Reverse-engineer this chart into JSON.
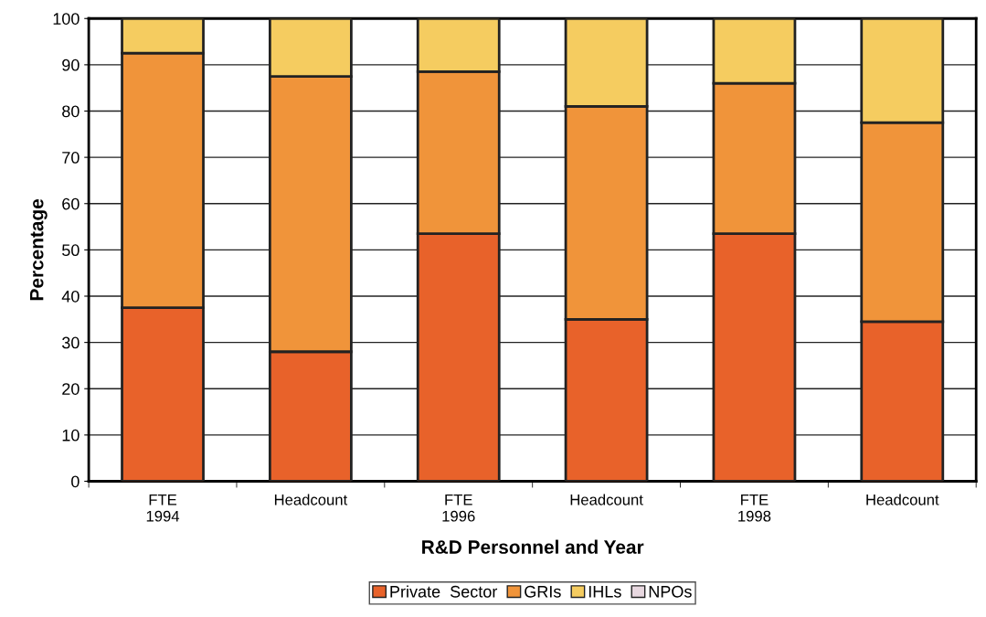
{
  "chart_data": {
    "type": "bar",
    "stacked": true,
    "xlabel": "R&D Personnel and Year",
    "ylabel": "Percentage",
    "categories": [
      "FTE\n1994",
      "Headcount",
      "FTE\n1996",
      "Headcount",
      "FTE\n1998",
      "Headcount"
    ],
    "series": [
      {
        "name": "Private  Sector",
        "color": "#e8622a",
        "values": [
          37.5,
          28,
          53.5,
          35,
          53.5,
          34.5
        ]
      },
      {
        "name": "GRIs",
        "color": "#f0943a",
        "values": [
          55,
          59.5,
          35,
          46,
          32.5,
          43
        ]
      },
      {
        "name": "IHLs",
        "color": "#f5cc60",
        "values": [
          7.5,
          12.5,
          11.5,
          19,
          14,
          22.5
        ]
      },
      {
        "name": "NPOs",
        "color": "#e8d8e0",
        "values": [
          0,
          0,
          0,
          0,
          0,
          0
        ]
      }
    ],
    "ylim": [
      0,
      100
    ],
    "yticks": [
      0,
      10,
      20,
      30,
      40,
      50,
      60,
      70,
      80,
      90,
      100
    ],
    "grid": "y",
    "legend": "bottom"
  }
}
